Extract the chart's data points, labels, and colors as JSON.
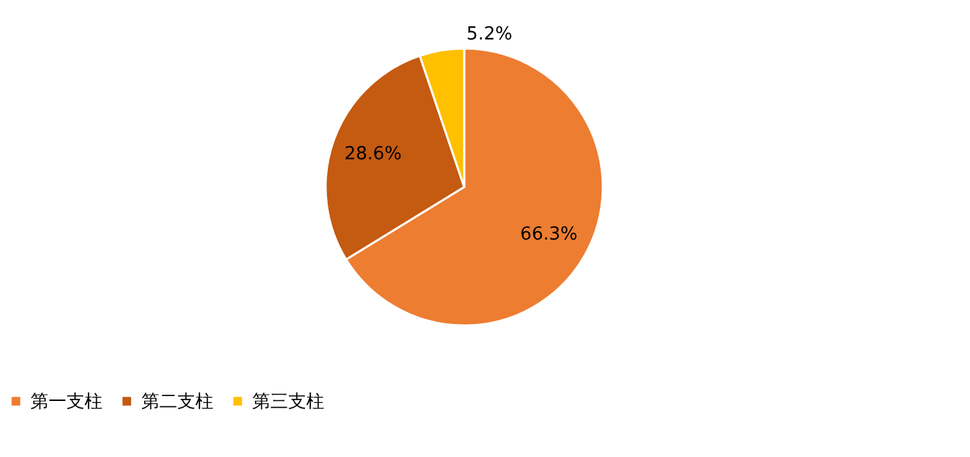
{
  "chart_data": {
    "type": "pie",
    "categories": [
      "第一支柱",
      "第二支柱",
      "第三支柱"
    ],
    "values": [
      66.3,
      28.6,
      5.2
    ],
    "colors": [
      "#ed7d31",
      "#c55a11",
      "#ffc000"
    ],
    "value_labels": [
      "66.3%",
      "28.6%",
      "5.2%"
    ],
    "legend": "bottom"
  }
}
